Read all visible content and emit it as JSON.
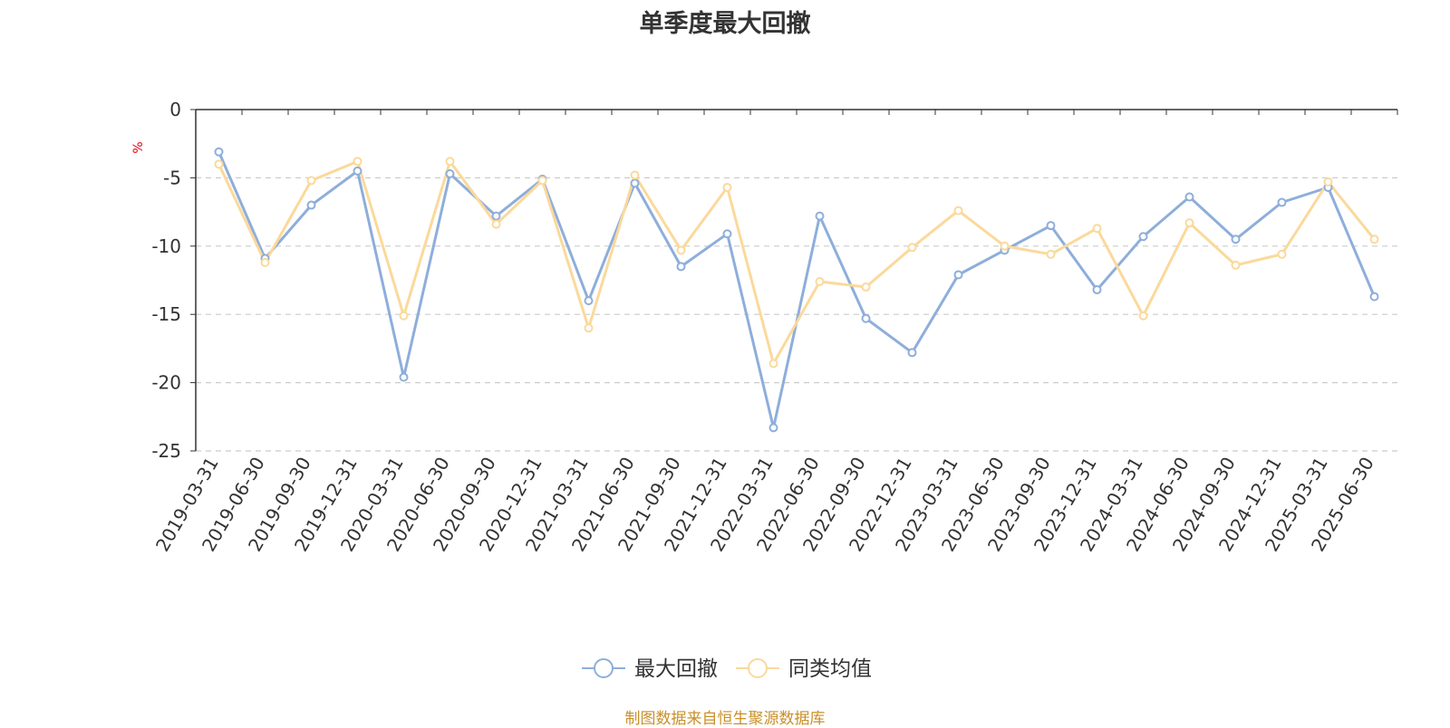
{
  "chart_data": {
    "type": "line",
    "title": "单季度最大回撤",
    "ylabel": "%",
    "ylim": [
      -25,
      0
    ],
    "yticks": [
      0,
      -5,
      -10,
      -15,
      -20,
      -25
    ],
    "grid": true,
    "legend_position": "bottom",
    "x": [
      "2019-03-31",
      "2019-06-30",
      "2019-09-30",
      "2019-12-31",
      "2020-03-31",
      "2020-06-30",
      "2020-09-30",
      "2020-12-31",
      "2021-03-31",
      "2021-06-30",
      "2021-09-30",
      "2021-12-31",
      "2022-03-31",
      "2022-06-30",
      "2022-09-30",
      "2022-12-31",
      "2023-03-31",
      "2023-06-30",
      "2023-09-30",
      "2023-12-31",
      "2024-03-31",
      "2024-06-30",
      "2024-09-30",
      "2024-12-31",
      "2025-03-31",
      "2025-06-30"
    ],
    "series": [
      {
        "name": "最大回撤",
        "color": "#8eaedb",
        "values": [
          -3.1,
          -10.9,
          -7.0,
          -4.5,
          -19.6,
          -4.7,
          -7.8,
          -5.1,
          -14.0,
          -5.4,
          -11.5,
          -9.1,
          -23.3,
          -7.8,
          -15.3,
          -17.8,
          -12.1,
          -10.3,
          -8.5,
          -13.2,
          -9.3,
          -6.4,
          -9.5,
          -6.8,
          -5.7,
          -13.7
        ]
      },
      {
        "name": "同类均值",
        "color": "#fbd99b",
        "values": [
          -4.0,
          -11.2,
          -5.2,
          -3.8,
          -15.1,
          -3.8,
          -8.4,
          -5.2,
          -16.0,
          -4.8,
          -10.3,
          -5.7,
          -18.6,
          -12.6,
          -13.0,
          -10.1,
          -7.4,
          -10.0,
          -10.6,
          -8.7,
          -15.1,
          -8.3,
          -11.4,
          -10.6,
          -5.3,
          -9.5
        ]
      }
    ]
  },
  "footer": {
    "source": "制图数据来自恒生聚源数据库"
  }
}
